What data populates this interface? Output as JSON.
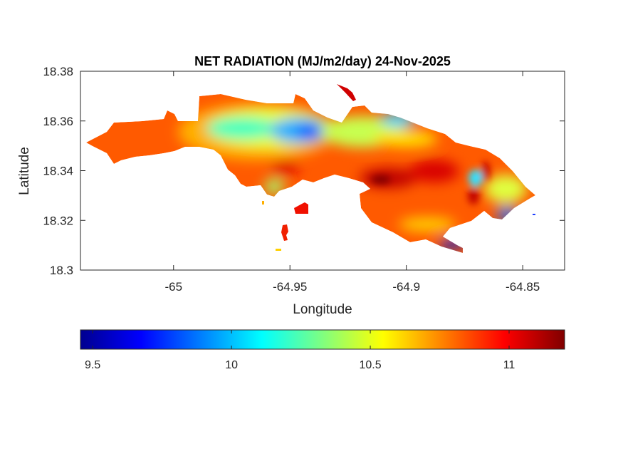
{
  "chart_data": {
    "type": "heatmap",
    "title": "NET RADIATION (MJ/m2/day) 24-Nov-2025",
    "xlabel": "Longitude",
    "ylabel": "Latitude",
    "xlim": [
      -65.04,
      -64.832
    ],
    "ylim": [
      18.3,
      18.38
    ],
    "xticks": [
      -65,
      -64.95,
      -64.9,
      -64.85
    ],
    "xtick_labels": [
      "-65",
      "-64.95",
      "-64.9",
      "-64.85"
    ],
    "yticks": [
      18.3,
      18.32,
      18.34,
      18.36,
      18.38
    ],
    "ytick_labels": [
      "18.3",
      "18.32",
      "18.34",
      "18.36",
      "18.38"
    ],
    "colormap": "jet",
    "clim": [
      9.456,
      11.2
    ],
    "colorbar": {
      "location": "bottom",
      "ticks": [
        9.5,
        10,
        10.5,
        11
      ],
      "tick_labels": [
        "9.5",
        "10",
        "10.5",
        "11"
      ]
    },
    "value_summary": {
      "min_approx": 9.5,
      "max_approx": 11.15,
      "typical": 10.9
    }
  }
}
